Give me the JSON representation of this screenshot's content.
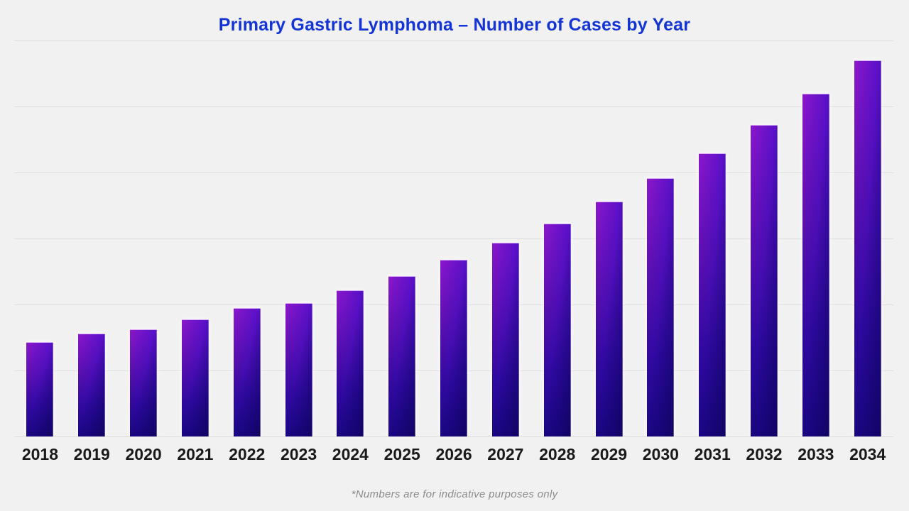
{
  "title": "Primary Gastric Lymphoma – Number of Cases by Year",
  "footnote": "*Numbers are for indicative purposes only",
  "colors": {
    "background": "#f1f1f2",
    "title": "#1434d4",
    "gridline": "#dcdcdd",
    "axis_label": "#1a1a1a",
    "footnote": "#8c8c8c",
    "bar_top": "#8d17cb",
    "bar_mid1": "#5f10b0",
    "bar_mid2": "#31099c",
    "bar_bottom": "#1b0687"
  },
  "chart_data": {
    "type": "bar",
    "title": "Primary Gastric Lymphoma – Number of Cases by Year",
    "categories": [
      "2018",
      "2019",
      "2020",
      "2021",
      "2022",
      "2023",
      "2024",
      "2025",
      "2026",
      "2027",
      "2028",
      "2029",
      "2030",
      "2031",
      "2032",
      "2033",
      "2034"
    ],
    "values": [
      143,
      156,
      162,
      177,
      195,
      202,
      222,
      243,
      268,
      294,
      323,
      356,
      391,
      429,
      472,
      519,
      570
    ],
    "xlabel": "",
    "ylabel": "",
    "ylim": [
      0,
      600
    ],
    "gridline_interval": 100,
    "grid": "horizontal",
    "gridline_count": 7,
    "legend": "none",
    "y_axis_tick_labels_visible": false,
    "value_note": "y-axis is unlabeled in the image; values estimated from unlabeled gridlines with 1 gridline interval = 100 units"
  }
}
